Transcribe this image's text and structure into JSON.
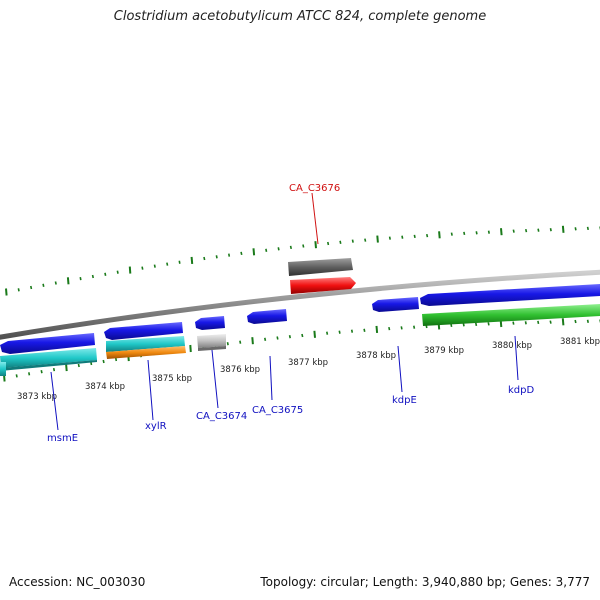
{
  "title": "Clostridium acetobutylicum ATCC 824, complete genome",
  "footer": {
    "accession": "Accession: NC_003030",
    "summary": "Topology: circular; Length: 3,940,880 bp; Genes: 3,777"
  },
  "colors": {
    "tick": "#1a7a1a",
    "backbone": "#8a8a8a",
    "gene_blue": "#1010e0",
    "gene_cyan": "#20c8c8",
    "gene_orange": "#f08a10",
    "gene_gray": "#c0c0c0",
    "gene_dark_gray": "#606060",
    "gene_red": "#f01010",
    "gene_green": "#30c030",
    "label_blue": "#1010c0",
    "label_red": "#d01010"
  },
  "kbp_labels": [
    "3873 kbp",
    "3874 kbp",
    "3875 kbp",
    "3876 kbp",
    "3877 kbp",
    "3878 kbp",
    "3879 kbp",
    "3880 kbp",
    "3881 kbp"
  ],
  "gene_labels": {
    "ca_c3676": "CA_C3676",
    "msme": "msmE",
    "xylr": "xylR",
    "ca_c3674": "CA_C3674",
    "ca_c3675": "CA_C3675",
    "kdpe": "kdpE",
    "kdpd": "kdpD"
  }
}
